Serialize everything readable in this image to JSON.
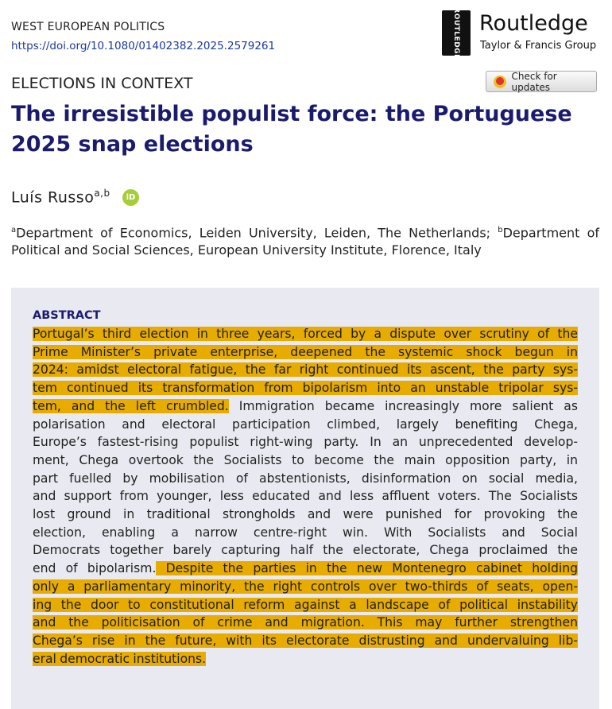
{
  "header": {
    "journal": "WEST EUROPEAN POLITICS",
    "doi": "https://doi.org/10.1080/01402382.2025.2579261",
    "publisher": "Routledge",
    "publisher_group": "Taylor & Francis Group",
    "logo_text": "ROUTLEDGE",
    "check_updates": "Check for updates"
  },
  "article": {
    "section": "ELECTIONS IN CONTEXT",
    "title_lines": [
      "The irresistible populist force: the Portuguese",
      "2025 snap elections"
    ],
    "author": {
      "name": "Luís Russo",
      "marks": "a,b",
      "orcid": "iD"
    },
    "affiliations": [
      {
        "mark": "a",
        "text": "Department of Economics, Leiden University, Leiden, The Netherlands; "
      },
      {
        "mark": "b",
        "text": "Department of Political and Social Sciences, European University Institute, Florence, Italy"
      }
    ]
  },
  "abstract": {
    "heading": "ABSTRACT",
    "lines": [
      [
        {
          "text": "Portugal’s third election in three years, forced by a dispute over scrutiny of the",
          "highlight": true
        }
      ],
      [
        {
          "text": "Prime Minister’s private enterprise, deepened the systemic shock begun in",
          "highlight": true
        }
      ],
      [
        {
          "text": "2024: amidst electoral fatigue, the far right continued its ascent, the party sys-",
          "highlight": true
        }
      ],
      [
        {
          "text": "tem continued its transformation from bipolarism into an unstable tripolar sys-",
          "highlight": true
        }
      ],
      [
        {
          "text": "tem, and the left crumbled.",
          "highlight": true
        },
        {
          "text": " Immigration became increasingly more salient as",
          "highlight": false
        }
      ],
      [
        {
          "text": "polarisation and electoral participation climbed, largely benefiting Chega,",
          "highlight": false
        }
      ],
      [
        {
          "text": "Europe’s fastest-rising populist right-wing party. In an unprecedented develop-",
          "highlight": false
        }
      ],
      [
        {
          "text": "ment, Chega overtook the Socialists to become the main opposition party, in",
          "highlight": false
        }
      ],
      [
        {
          "text": "part fuelled by mobilisation of abstentionists, disinformation on social media,",
          "highlight": false
        }
      ],
      [
        {
          "text": "and support from younger, less educated and less affluent voters. The Socialists",
          "highlight": false
        }
      ],
      [
        {
          "text": "lost ground in traditional strongholds and were punished for provoking the",
          "highlight": false
        }
      ],
      [
        {
          "text": "election, enabling a narrow centre-right win. With Socialists and Social",
          "highlight": false
        }
      ],
      [
        {
          "text": "Democrats together barely capturing half the electorate, Chega proclaimed the",
          "highlight": false
        }
      ],
      [
        {
          "text": "end of bipolarism.",
          "highlight": false
        },
        {
          "text": " Despite the parties in the new Montenegro cabinet holding",
          "highlight": true
        }
      ],
      [
        {
          "text": "only a parliamentary minority, the right controls over two-thirds of seats, open-",
          "highlight": true
        }
      ],
      [
        {
          "text": "ing the door to constitutional reform against a landscape of political instability",
          "highlight": true
        }
      ],
      [
        {
          "text": "and the politicisation of crime and migration. This may further strengthen",
          "highlight": true
        }
      ],
      [
        {
          "text": "Chega’s rise in the future, with its electorate distrusting and undervaluing lib-",
          "highlight": true
        }
      ],
      [
        {
          "text": "eral democratic institutions.",
          "highlight": true
        }
      ]
    ]
  }
}
